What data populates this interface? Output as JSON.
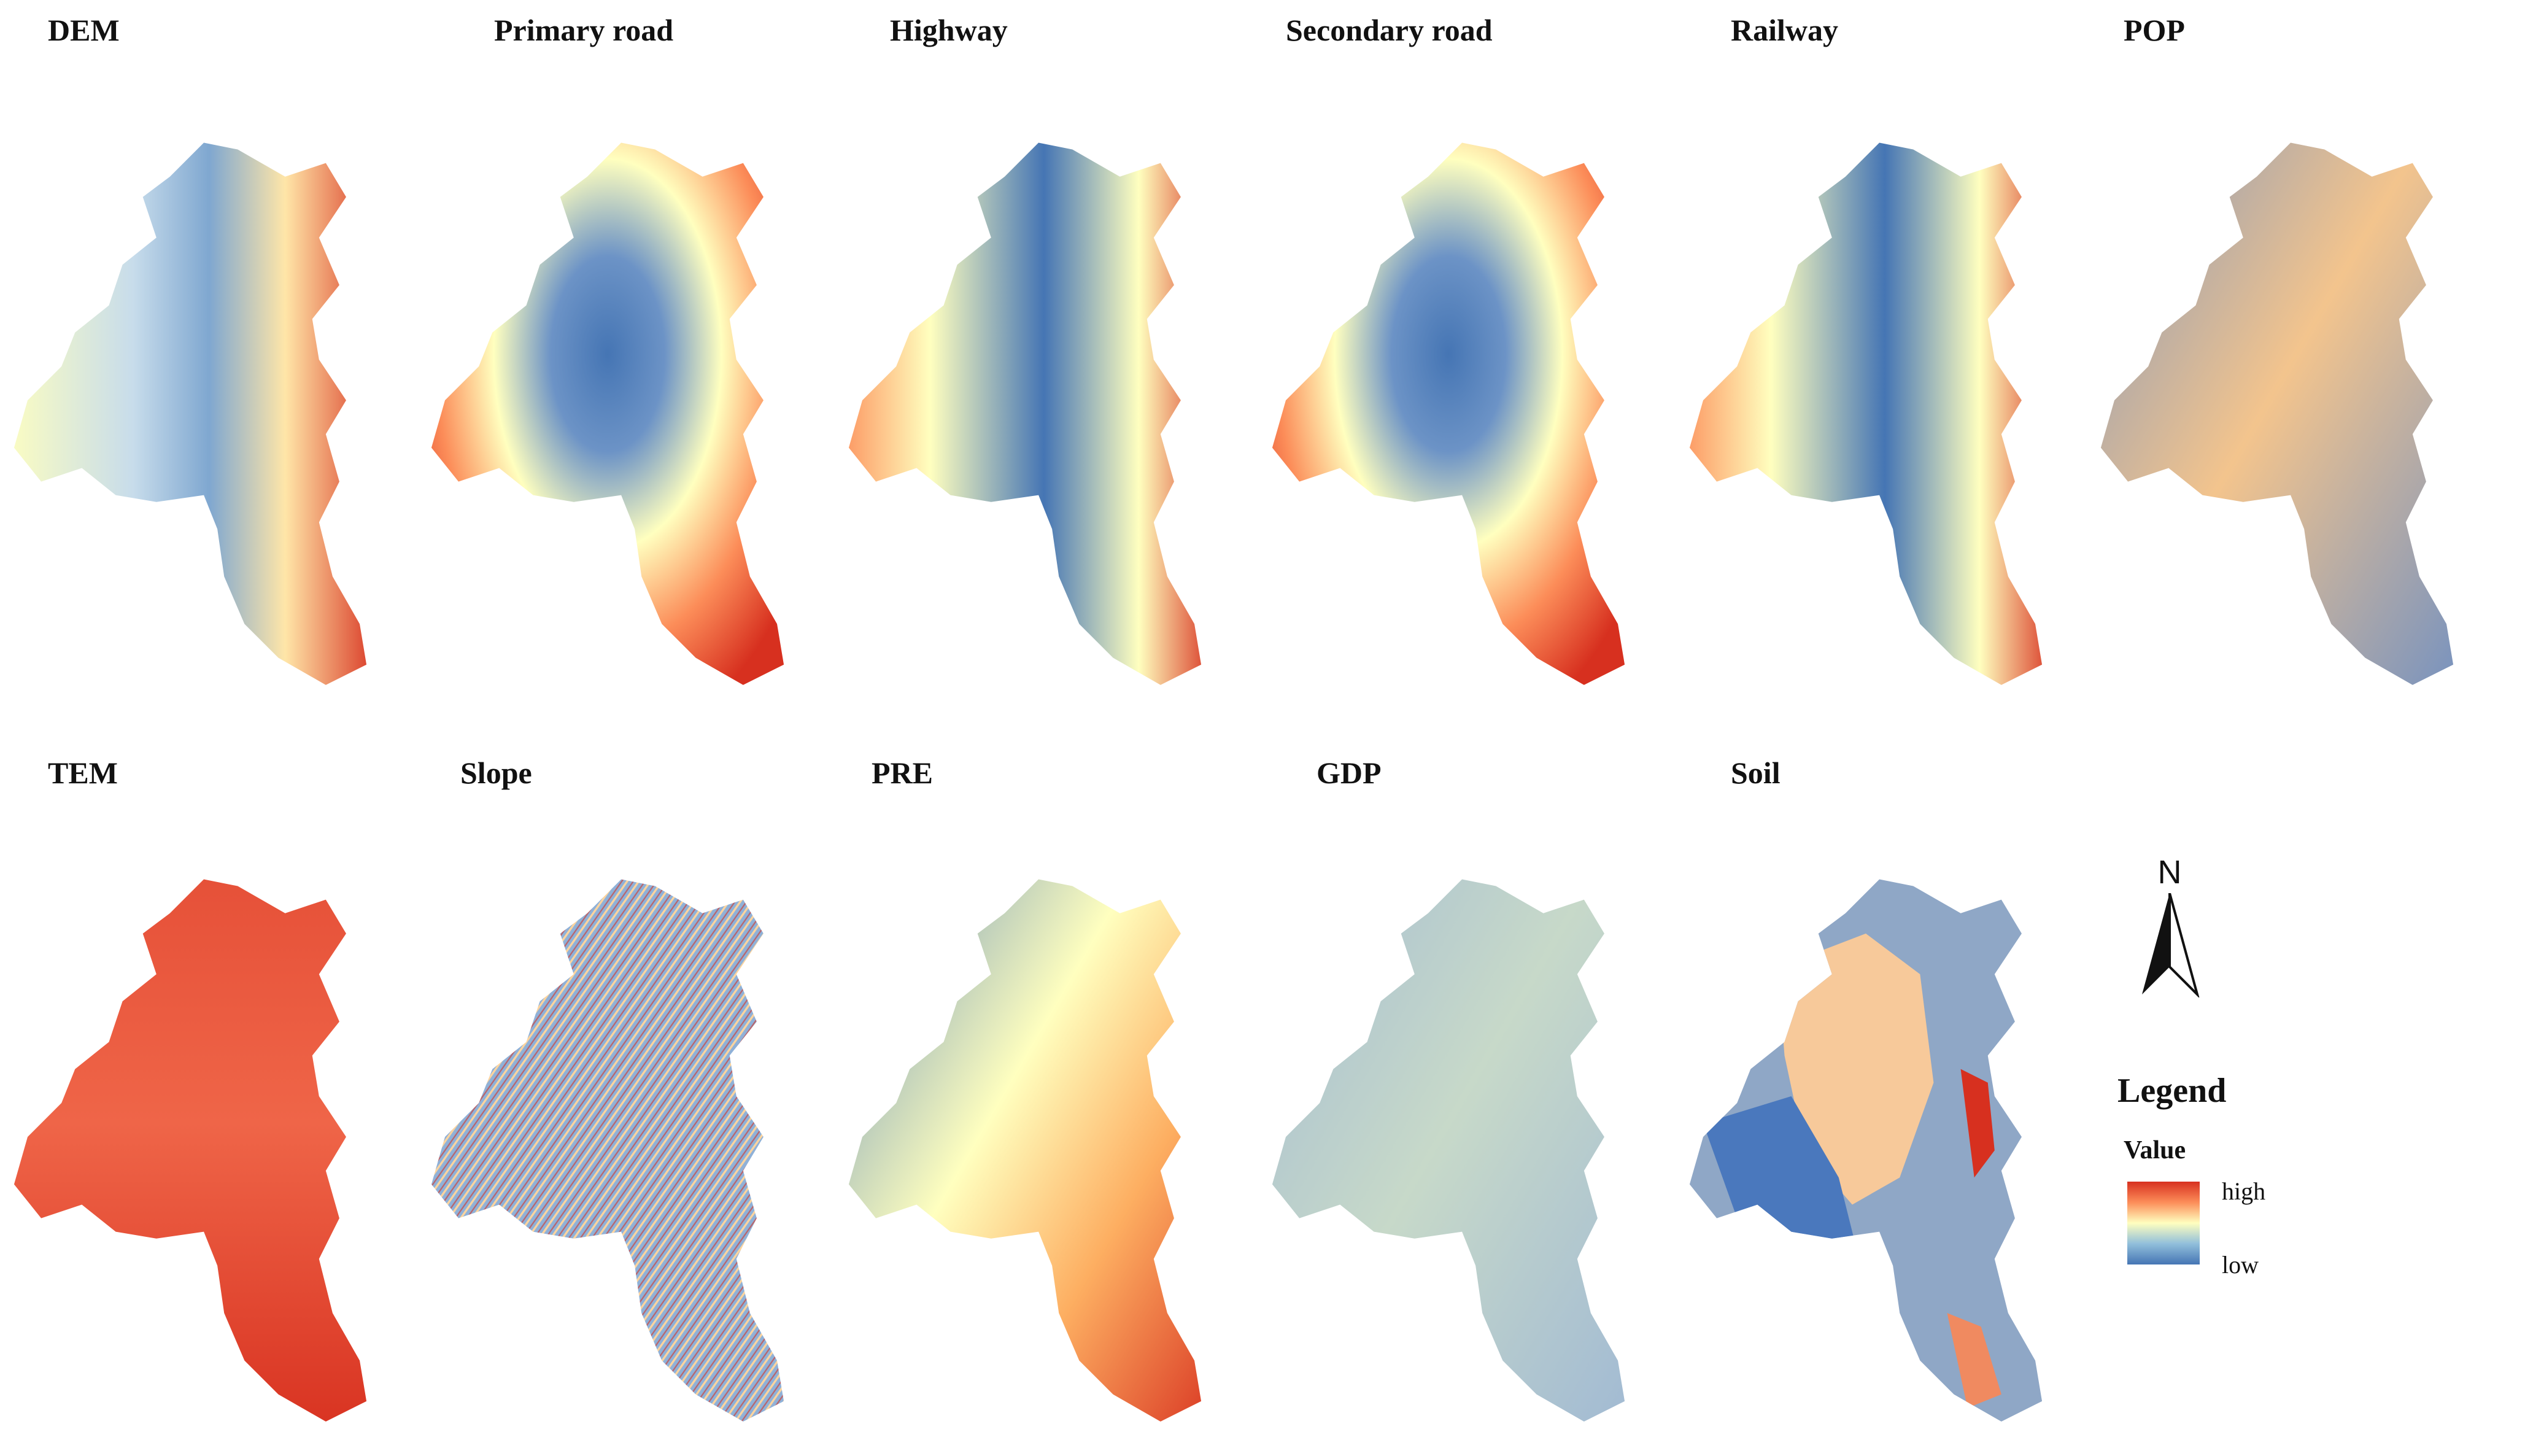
{
  "panels": [
    {
      "id": "dem",
      "title": "DEM"
    },
    {
      "id": "primary",
      "title": "Primary road"
    },
    {
      "id": "highway",
      "title": "Highway"
    },
    {
      "id": "secondary",
      "title": "Secondary road"
    },
    {
      "id": "railway",
      "title": "Railway"
    },
    {
      "id": "pop",
      "title": "POP"
    },
    {
      "id": "tem",
      "title": "TEM"
    },
    {
      "id": "slope",
      "title": "Slope"
    },
    {
      "id": "pre",
      "title": "PRE"
    },
    {
      "id": "gdp",
      "title": "GDP"
    },
    {
      "id": "soil",
      "title": "Soil"
    }
  ],
  "legend": {
    "title": "Legend",
    "subtitle": "Value",
    "high_label": "high",
    "low_label": "low",
    "ramp_colors": [
      "#d7301f",
      "#fc8d59",
      "#ffffbf",
      "#91bfdb",
      "#4575b4"
    ]
  },
  "north_arrow": {
    "label": "N",
    "icon": "north-arrow-icon"
  }
}
